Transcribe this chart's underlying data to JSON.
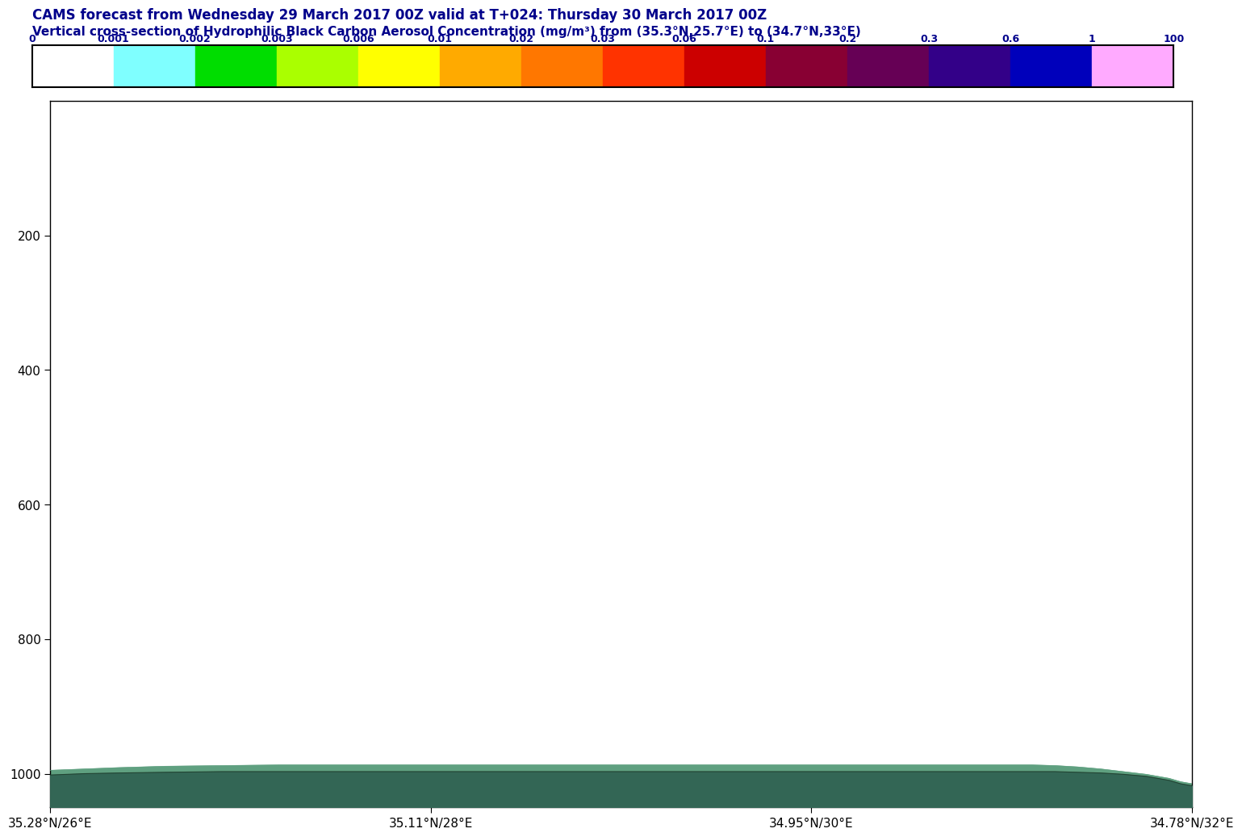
{
  "title_line1": "CAMS forecast from Wednesday 29 March 2017 00Z valid at T+024: Thursday 30 March 2017 00Z",
  "title_line2": "Vertical cross-section of Hydrophilic Black Carbon Aerosol Concentration (mg/m³) from (35.3°N,25.7°E) to (34.7°N,33°E)",
  "title_color": "#00008B",
  "colorbar_colors": [
    "#ffffff",
    "#7fffff",
    "#00dd00",
    "#aaff00",
    "#ffff00",
    "#ffaa00",
    "#ff7700",
    "#ff3300",
    "#cc0000",
    "#880033",
    "#660055",
    "#330088",
    "#0000bb",
    "#ffaaff"
  ],
  "colorbar_tick_labels": [
    "0",
    "0.001",
    "0.002",
    "0.003",
    "0.006",
    "0.01",
    "0.02",
    "0.03",
    "0.06",
    "0.1",
    "0.2",
    "0.3",
    "0.6",
    "1",
    "100"
  ],
  "yticks": [
    200,
    400,
    600,
    800,
    1000
  ],
  "ylim_bottom": 1050,
  "ylim_top": 0,
  "xlim": [
    0,
    100
  ],
  "xtick_labels": [
    "35.28°N/26°E",
    "35.11°N/28°E",
    "34.95°N/30°E",
    "34.78°N/32°E"
  ],
  "xtick_positions": [
    0,
    33.33,
    66.67,
    100
  ],
  "bg_color": "#ffffff",
  "fill_color_light": "#5fa080",
  "fill_color_dark": "#336655",
  "terrain_outline_color": "#224433",
  "terrain_x": [
    0,
    3,
    6,
    10,
    15,
    20,
    25,
    30,
    35,
    40,
    45,
    50,
    55,
    60,
    65,
    70,
    75,
    80,
    82,
    84,
    86,
    88,
    90,
    92,
    94,
    96,
    98,
    99,
    100
  ],
  "terrain_top": [
    1002,
    1000,
    999,
    998,
    997,
    997,
    997,
    997,
    997,
    997,
    997,
    997,
    997,
    997,
    997,
    997,
    997,
    997,
    997,
    997,
    997,
    997,
    998,
    999,
    1001,
    1004,
    1010,
    1015,
    1018
  ],
  "terrain_bottom": 1060,
  "conc_x": [
    0,
    3,
    6,
    10,
    15,
    20,
    25,
    30,
    35,
    40,
    45,
    50,
    55,
    60,
    65,
    70,
    75,
    80,
    82,
    84,
    86,
    88,
    90,
    92,
    94,
    96,
    98,
    99,
    100
  ],
  "conc_top": [
    995,
    993,
    991,
    989,
    988,
    987,
    987,
    987,
    987,
    987,
    987,
    987,
    987,
    987,
    987,
    987,
    987,
    987,
    987,
    987,
    987,
    988,
    990,
    993,
    997,
    1001,
    1007,
    1012,
    1015
  ]
}
